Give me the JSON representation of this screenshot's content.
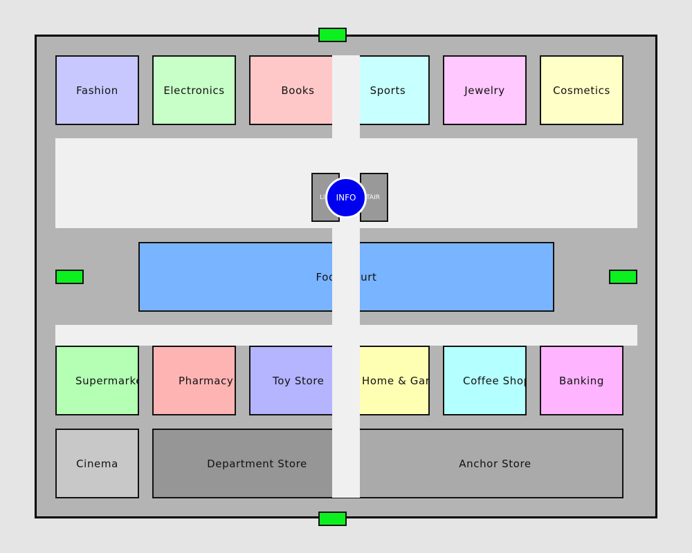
{
  "stores": {
    "fashion": {
      "label": "Fashion",
      "color": "#c8c8ff"
    },
    "electronics": {
      "label": "Electronics",
      "color": "#c8ffc8"
    },
    "books": {
      "label": "Books",
      "color": "#ffc8c8"
    },
    "sports": {
      "label": "Sports",
      "color": "#c8ffff"
    },
    "jewelry": {
      "label": "Jewelry",
      "color": "#ffc8ff"
    },
    "cosmetics": {
      "label": "Cosmetics",
      "color": "#ffffc8"
    },
    "food_court": {
      "label": "Food Court",
      "color": "#78b4ff"
    },
    "supermarket": {
      "label": "Supermarket",
      "color": "#b4ffb4"
    },
    "pharmacy": {
      "label": "Pharmacy",
      "color": "#ffb4b4"
    },
    "toy_store": {
      "label": "Toy Store",
      "color": "#b4b4ff"
    },
    "home_garden": {
      "label": "Home & Garden",
      "color": "#ffffb4"
    },
    "coffee_shop": {
      "label": "Coffee Shop",
      "color": "#b4ffff"
    },
    "banking": {
      "label": "Banking",
      "color": "#ffb4ff"
    },
    "cinema": {
      "label": "Cinema",
      "color": "#c8c8c8"
    },
    "department_store": {
      "label": "Department Store",
      "color": "#969696"
    },
    "anchor_store": {
      "label": "Anchor Store",
      "color": "#aaaaaa"
    }
  },
  "services": {
    "lift": "LIFT",
    "stair": "STAIR",
    "info": "INFO"
  }
}
